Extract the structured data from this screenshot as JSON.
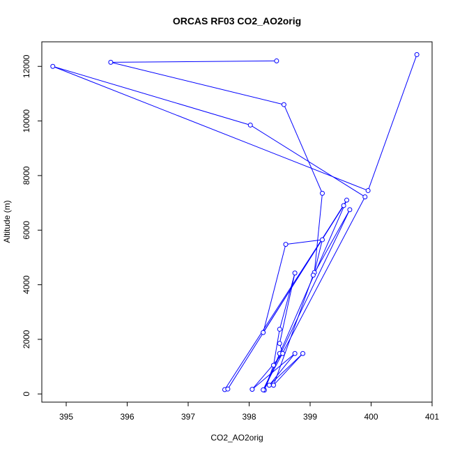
{
  "chart_data": {
    "type": "line",
    "title": "ORCAS RF03 CO2_AO2orig",
    "xlabel": "CO2_AO2orig",
    "ylabel": "Altitude (m)",
    "xlim": [
      394.6,
      401.0
    ],
    "ylim": [
      -300,
      12900
    ],
    "xticks": [
      395,
      396,
      397,
      398,
      399,
      400,
      401
    ],
    "yticks": [
      0,
      2000,
      4000,
      6000,
      8000,
      10000,
      12000
    ],
    "colors": {
      "series": "#0000ff",
      "axis": "#000000"
    },
    "series": [
      {
        "points": [
          {
            "x": 398.45,
            "y": 12200
          },
          {
            "x": 395.73,
            "y": 12150
          },
          {
            "x": 398.57,
            "y": 10600
          },
          {
            "x": 399.2,
            "y": 7350
          },
          {
            "x": 399.07,
            "y": 4450
          },
          {
            "x": 399.2,
            "y": 5650
          },
          {
            "x": 398.6,
            "y": 5480
          },
          {
            "x": 398.23,
            "y": 2250
          },
          {
            "x": 399.55,
            "y": 6900
          },
          {
            "x": 397.6,
            "y": 160
          },
          {
            "x": 397.65,
            "y": 180
          },
          {
            "x": 399.6,
            "y": 7100
          },
          {
            "x": 398.5,
            "y": 1480
          },
          {
            "x": 398.25,
            "y": 140
          },
          {
            "x": 398.4,
            "y": 1050
          },
          {
            "x": 398.5,
            "y": 2370
          },
          {
            "x": 398.75,
            "y": 4430
          },
          {
            "x": 398.5,
            "y": 1850
          },
          {
            "x": 398.55,
            "y": 1480
          },
          {
            "x": 398.05,
            "y": 170
          },
          {
            "x": 398.75,
            "y": 1480
          },
          {
            "x": 398.33,
            "y": 320
          },
          {
            "x": 398.88,
            "y": 1480
          },
          {
            "x": 398.4,
            "y": 320
          },
          {
            "x": 399.05,
            "y": 4350
          },
          {
            "x": 399.65,
            "y": 6750
          },
          {
            "x": 398.23,
            "y": 150
          },
          {
            "x": 399.9,
            "y": 7220
          },
          {
            "x": 398.02,
            "y": 9850
          },
          {
            "x": 394.78,
            "y": 12000
          },
          {
            "x": 399.95,
            "y": 7450
          },
          {
            "x": 400.75,
            "y": 12430
          }
        ]
      }
    ]
  }
}
